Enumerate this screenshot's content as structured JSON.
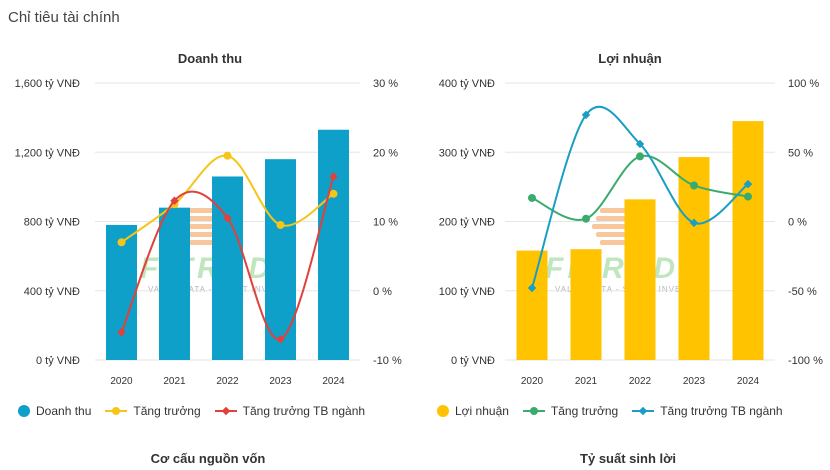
{
  "page_title": "Chỉ tiêu tài chính",
  "bottom_titles": {
    "left": "Cơ cấu nguồn vốn",
    "right": "Tỷ suất sinh lời"
  },
  "colors": {
    "revenue_bar": "#0ea0c9",
    "profit_bar": "#ffc300",
    "growth_yellow": "#f5c518",
    "industry_red": "#e2403a",
    "growth_green": "#3aab6d",
    "industry_teal": "#1a9ec2",
    "grid": "#e6e6e6"
  },
  "chart_data": [
    {
      "type": "bar",
      "title": "Doanh thu",
      "categories": [
        "2020",
        "2021",
        "2022",
        "2023",
        "2024"
      ],
      "ylim": [
        0,
        1600
      ],
      "y_ticks": [
        0,
        400,
        800,
        1200,
        1600
      ],
      "y_tick_labels": [
        "0 tỷ VNĐ",
        "400 tỷ VNĐ",
        "800 tỷ VNĐ",
        "1,200 tỷ VNĐ",
        "1,600 tỷ VNĐ"
      ],
      "y2lim": [
        -10,
        30
      ],
      "y2_ticks": [
        -10,
        0,
        10,
        20,
        30
      ],
      "y2_tick_labels": [
        "-10 %",
        "0 %",
        "10 %",
        "20 %",
        "30 %"
      ],
      "series": [
        {
          "name": "Doanh thu",
          "kind": "bar",
          "axis": "left",
          "values": [
            780,
            880,
            1060,
            1160,
            1330
          ]
        },
        {
          "name": "Tăng trưởng",
          "kind": "line",
          "axis": "right",
          "marker": "circle",
          "values": [
            7,
            12.5,
            19.5,
            9.5,
            14
          ]
        },
        {
          "name": "Tăng trưởng TB ngành",
          "kind": "line",
          "axis": "right",
          "marker": "diamond",
          "values": [
            -6,
            13,
            10.5,
            -7,
            16.5
          ]
        }
      ],
      "legend": [
        "Doanh thu",
        "Tăng trưởng",
        "Tăng trưởng TB ngành"
      ]
    },
    {
      "type": "bar",
      "title": "Lợi nhuận",
      "categories": [
        "2020",
        "2021",
        "2022",
        "2023",
        "2024"
      ],
      "ylim": [
        0,
        400
      ],
      "y_ticks": [
        0,
        100,
        200,
        300,
        400
      ],
      "y_tick_labels": [
        "0 tỷ VNĐ",
        "100 tỷ VNĐ",
        "200 tỷ VNĐ",
        "300 tỷ VNĐ",
        "400 tỷ VNĐ"
      ],
      "y2lim": [
        -100,
        100
      ],
      "y2_ticks": [
        -100,
        -50,
        0,
        50,
        100
      ],
      "y2_tick_labels": [
        "-100 %",
        "-50 %",
        "0 %",
        "50 %",
        "100 %"
      ],
      "series": [
        {
          "name": "Lợi nhuận",
          "kind": "bar",
          "axis": "left",
          "values": [
            158,
            160,
            232,
            293,
            345
          ]
        },
        {
          "name": "Tăng trưởng",
          "kind": "line",
          "axis": "right",
          "marker": "circle",
          "values": [
            17,
            2,
            47,
            26,
            18
          ]
        },
        {
          "name": "Tăng trưởng TB ngành",
          "kind": "line",
          "axis": "right",
          "marker": "diamond",
          "values": [
            -48,
            77,
            56,
            -1,
            27
          ]
        }
      ],
      "legend": [
        "Lợi nhuận",
        "Tăng trưởng",
        "Tăng trưởng TB ngành"
      ]
    }
  ]
}
